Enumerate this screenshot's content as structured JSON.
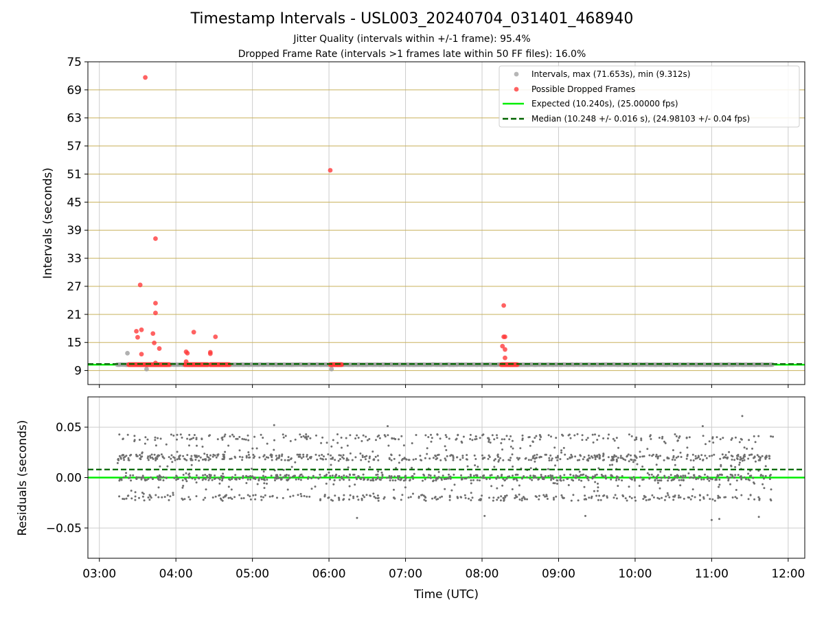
{
  "figure": {
    "title": "Timestamp Intervals - USL003_20240704_031401_468940",
    "subtitle_1": "Jitter Quality (intervals within +/-1 frame): 95.4%",
    "subtitle_2": "Dropped Frame Rate (intervals >1 frames late within 50 FF files): 16.0%"
  },
  "colors": {
    "intervals": "#9e9e9e",
    "dropped": "#ff3b3b",
    "expected": "#00ee00",
    "median": "#006400",
    "hgrid": "#c8b05a",
    "vgrid": "#cccccc",
    "residuals": "#6e6e6e"
  },
  "chart_data": [
    {
      "type": "scatter",
      "ylabel": "Intervals (seconds)",
      "ylim": [
        6,
        75
      ],
      "yticks": [
        "9",
        "15",
        "21",
        "27",
        "33",
        "39",
        "45",
        "51",
        "57",
        "63",
        "69",
        "75"
      ],
      "xlim": [
        "02:51",
        "12:13"
      ],
      "xticks": [
        "03:00",
        "04:00",
        "05:00",
        "06:00",
        "07:00",
        "08:00",
        "09:00",
        "10:00",
        "11:00",
        "12:00"
      ],
      "grid": "on",
      "legend_position": "top-right",
      "legend": [
        "Intervals, max (71.653s), min (9.312s)",
        "Possible Dropped Frames",
        "Expected (10.240s), (25.00000 fps)",
        "Median (10.248 +/- 0.016 s), (24.98103 +/- 0.04 fps)"
      ],
      "expected_interval": 10.24,
      "median_interval": 10.248,
      "intervals_time_range": [
        "03:14",
        "11:48"
      ],
      "intervals_max": 71.653,
      "intervals_min": 9.312,
      "intervals_outliers": [
        {
          "x": "03:22",
          "y": 12.7
        },
        {
          "x": "03:37",
          "y": 9.3
        },
        {
          "x": "06:02",
          "y": 9.3
        }
      ],
      "dropped_clusters": [
        {
          "start": "03:23",
          "end": "03:55",
          "y": 10.25
        },
        {
          "start": "04:07",
          "end": "04:25",
          "y": 10.25
        },
        {
          "start": "04:27",
          "end": "04:42",
          "y": 10.25
        },
        {
          "start": "06:01",
          "end": "06:10",
          "y": 10.25
        },
        {
          "start": "08:15",
          "end": "08:28",
          "y": 10.25
        }
      ],
      "dropped_points": [
        {
          "x": "03:36",
          "y": 71.65
        },
        {
          "x": "03:44",
          "y": 37.2
        },
        {
          "x": "03:32",
          "y": 27.3
        },
        {
          "x": "03:44",
          "y": 23.4
        },
        {
          "x": "03:44",
          "y": 21.3
        },
        {
          "x": "03:33",
          "y": 17.7
        },
        {
          "x": "03:29",
          "y": 17.4
        },
        {
          "x": "03:42",
          "y": 16.9
        },
        {
          "x": "03:30",
          "y": 16.1
        },
        {
          "x": "03:43",
          "y": 14.9
        },
        {
          "x": "03:47",
          "y": 13.7
        },
        {
          "x": "03:33",
          "y": 12.5
        },
        {
          "x": "03:44",
          "y": 10.6
        },
        {
          "x": "04:14",
          "y": 17.2
        },
        {
          "x": "04:31",
          "y": 16.2
        },
        {
          "x": "04:08",
          "y": 13.0
        },
        {
          "x": "04:09",
          "y": 12.7
        },
        {
          "x": "04:27",
          "y": 12.9
        },
        {
          "x": "04:27",
          "y": 12.6
        },
        {
          "x": "04:08",
          "y": 10.9
        },
        {
          "x": "06:01",
          "y": 51.8
        },
        {
          "x": "08:17",
          "y": 22.9
        },
        {
          "x": "08:17",
          "y": 16.2
        },
        {
          "x": "08:18",
          "y": 16.2
        },
        {
          "x": "08:16",
          "y": 14.2
        },
        {
          "x": "08:18",
          "y": 13.5
        },
        {
          "x": "08:18",
          "y": 11.7
        }
      ]
    },
    {
      "type": "scatter",
      "ylabel": "Residuals (seconds)",
      "xlabel": "Time (UTC)",
      "ylim": [
        -0.08,
        0.08
      ],
      "yticks": [
        "0.05",
        "0.00",
        "−0.05"
      ],
      "xlim": [
        "02:51",
        "12:13"
      ],
      "xticks": [
        "03:00",
        "04:00",
        "05:00",
        "06:00",
        "07:00",
        "08:00",
        "09:00",
        "10:00",
        "11:00",
        "12:00"
      ],
      "grid": "on",
      "zero_line": 0.0,
      "median_residual": 0.008,
      "residual_bands": [
        -0.02,
        0.0,
        0.02,
        0.04
      ],
      "residuals_time_range": [
        "03:14",
        "11:48"
      ],
      "residual_extremes": [
        {
          "x": "05:17",
          "y": 0.052
        },
        {
          "x": "06:46",
          "y": 0.051
        },
        {
          "x": "10:53",
          "y": 0.051
        },
        {
          "x": "11:24",
          "y": 0.061
        },
        {
          "x": "06:22",
          "y": -0.04
        },
        {
          "x": "08:02",
          "y": -0.038
        },
        {
          "x": "09:21",
          "y": -0.038
        },
        {
          "x": "11:00",
          "y": -0.042
        },
        {
          "x": "11:06",
          "y": -0.041
        },
        {
          "x": "11:37",
          "y": -0.039
        }
      ]
    }
  ]
}
